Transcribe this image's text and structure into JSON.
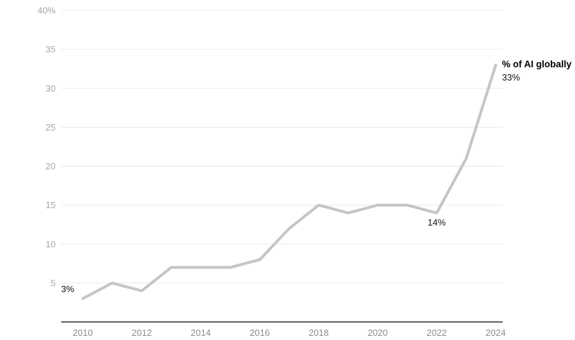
{
  "chart_data": {
    "type": "line",
    "title": "",
    "xlabel": "",
    "ylabel": "",
    "grid": true,
    "legend_position": "end-of-line",
    "ylim": [
      0,
      40
    ],
    "series": [
      {
        "name": "% of AI globally",
        "x": [
          2010,
          2011,
          2012,
          2013,
          2014,
          2015,
          2016,
          2017,
          2018,
          2019,
          2020,
          2021,
          2022,
          2023,
          2024
        ],
        "values": [
          3,
          5,
          4,
          7,
          7,
          7,
          8,
          12,
          15,
          14,
          15,
          15,
          14,
          21,
          33
        ]
      }
    ],
    "yticks": [
      {
        "value": 5,
        "label": "5"
      },
      {
        "value": 10,
        "label": "10"
      },
      {
        "value": 15,
        "label": "15"
      },
      {
        "value": 20,
        "label": "20"
      },
      {
        "value": 25,
        "label": "25"
      },
      {
        "value": 30,
        "label": "30"
      },
      {
        "value": 35,
        "label": "35"
      },
      {
        "value": 40,
        "label": "40%"
      }
    ],
    "xticks": [
      {
        "value": 2010,
        "label": "2010"
      },
      {
        "value": 2012,
        "label": "2012"
      },
      {
        "value": 2014,
        "label": "2014"
      },
      {
        "value": 2016,
        "label": "2016"
      },
      {
        "value": 2018,
        "label": "2018"
      },
      {
        "value": 2020,
        "label": "2020"
      },
      {
        "value": 2022,
        "label": "2022"
      },
      {
        "value": 2024,
        "label": "2024"
      }
    ],
    "annotations": [
      {
        "text": "3%",
        "year": 2010,
        "value": 3
      },
      {
        "text": "14%",
        "year": 2022,
        "value": 14
      },
      {
        "text": "% of AI globally",
        "year": 2024,
        "value": 33
      },
      {
        "text": "33%",
        "year": 2024,
        "value": 33
      }
    ],
    "colors": {
      "line": "#c5c5c5",
      "grid": "#eaeaea",
      "axis": "#5f5f5f",
      "y_tick_text": "#a6a6a6",
      "x_tick_text": "#8c8c8c",
      "annotation_text": "#111111"
    }
  }
}
